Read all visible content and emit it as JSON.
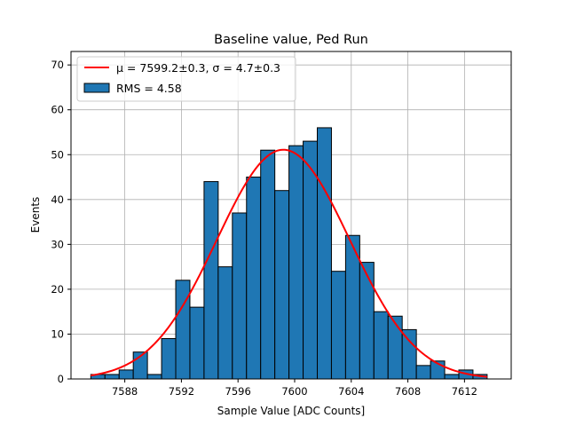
{
  "chart_data": {
    "type": "bar",
    "title": "Baseline value, Ped Run",
    "xlabel": "Sample Value [ADC Counts]",
    "ylabel": "Events",
    "xlim": [
      7584.2,
      7615.3
    ],
    "ylim": [
      0,
      73
    ],
    "xticks": [
      7588,
      7592,
      7596,
      7600,
      7604,
      7608,
      7612
    ],
    "yticks": [
      0,
      10,
      20,
      30,
      40,
      50,
      60,
      70
    ],
    "grid": true,
    "legend_position": "top-left",
    "histogram": {
      "label": "RMS = 4.58",
      "color": "#1f77b4",
      "edgecolor": "#000000",
      "bin_start": 7585.6,
      "bin_width": 1.0,
      "values": [
        1,
        1,
        2,
        6,
        1,
        9,
        22,
        16,
        44,
        25,
        37,
        45,
        51,
        42,
        52,
        53,
        56,
        24,
        32,
        26,
        15,
        14,
        11,
        3,
        4,
        1,
        2,
        1
      ]
    },
    "fit": {
      "label_mu": "μ = 7599.2±0.3",
      "label_sigma": "σ = 4.7±0.3",
      "color": "#ff0000",
      "amplitude": 51.1,
      "mu": 7599.2,
      "sigma": 4.7,
      "x_range": [
        7585.6,
        7613.6
      ]
    }
  }
}
